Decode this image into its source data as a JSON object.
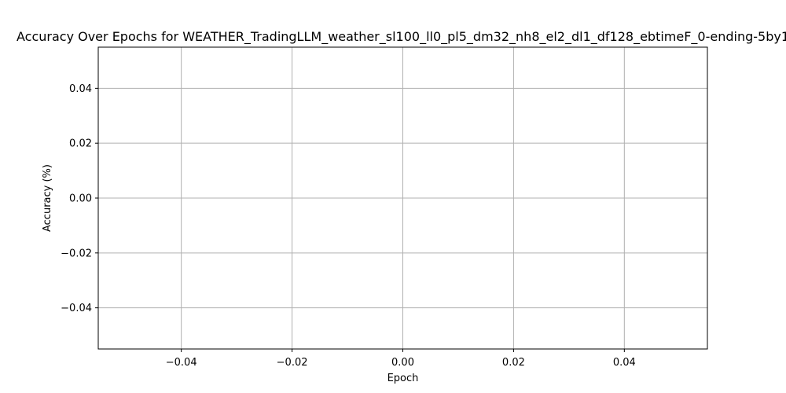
{
  "chart_data": {
    "type": "line",
    "title": "Accuracy Over Epochs for WEATHER_TradingLLM_weather_sl100_ll0_pl5_dm32_nh8_el2_dl1_df128_ebtimeF_0-ending-5by1",
    "xlabel": "Epoch",
    "ylabel": "Accuracy (%)",
    "xlim": [
      -0.055,
      0.055
    ],
    "ylim": [
      -0.055,
      0.055
    ],
    "xticks": [
      -0.04,
      -0.02,
      0.0,
      0.02,
      0.04
    ],
    "xtick_labels": [
      "−0.04",
      "−0.02",
      "0.00",
      "0.02",
      "0.04"
    ],
    "yticks": [
      -0.04,
      -0.02,
      0.0,
      0.02,
      0.04
    ],
    "ytick_labels": [
      "−0.04",
      "−0.02",
      "0.00",
      "0.02",
      "0.04"
    ],
    "grid": true,
    "series": [
      {
        "x": [],
        "y": []
      }
    ],
    "colors": {
      "grid": "#b0b0b0",
      "spine": "#000000",
      "text": "#000000"
    }
  }
}
